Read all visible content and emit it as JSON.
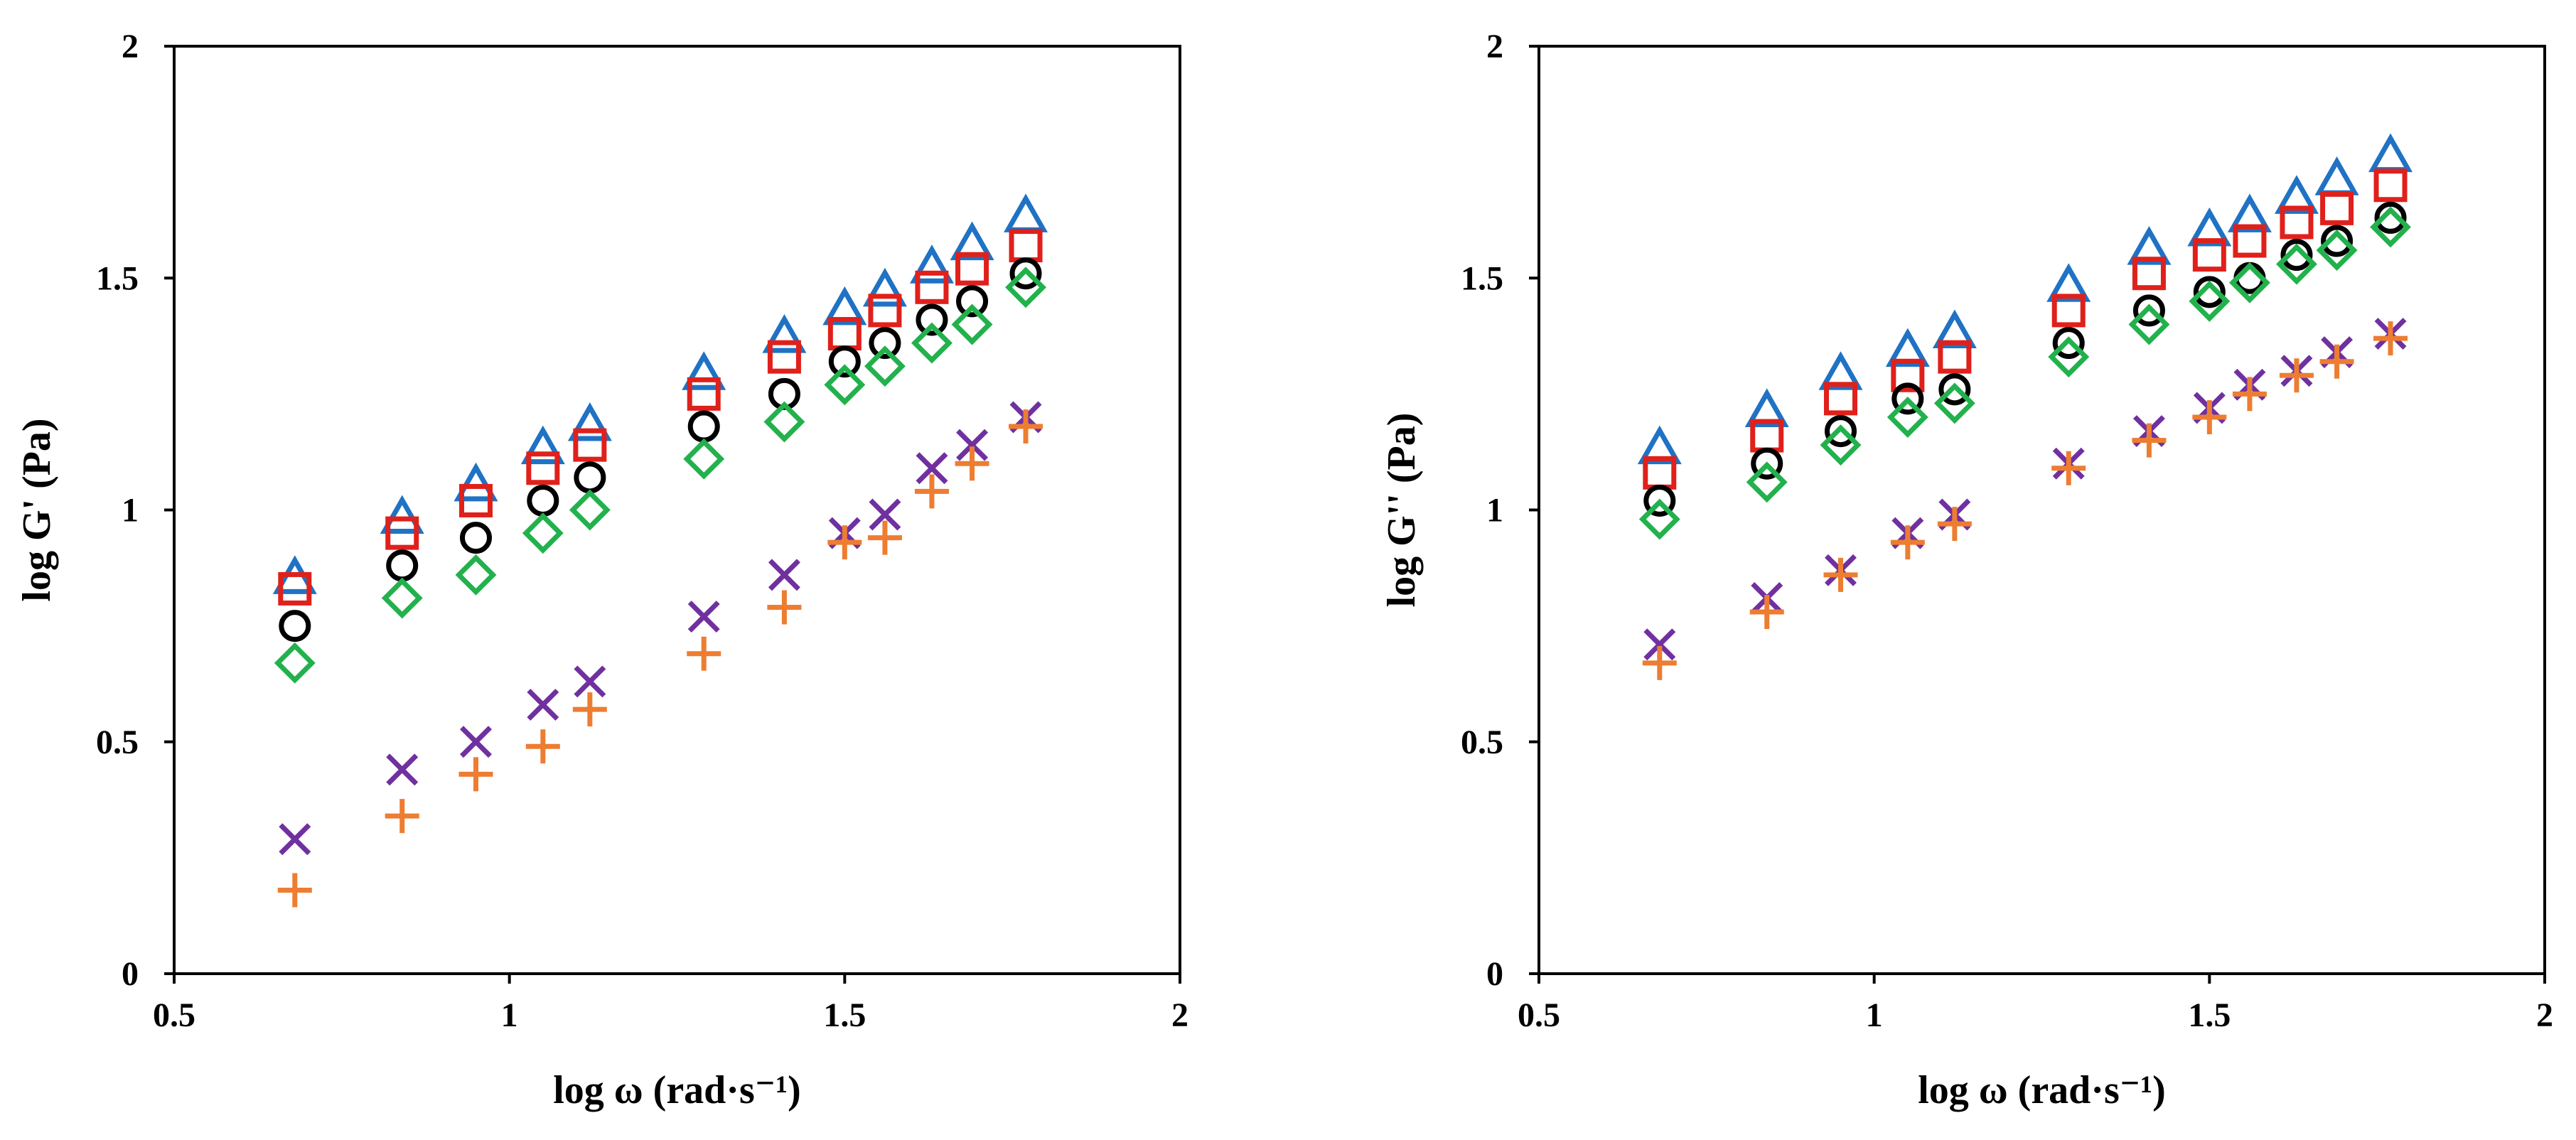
{
  "chart_data": [
    {
      "type": "scatter",
      "title": "",
      "xlabel": "log ω (rad·s⁻¹)",
      "ylabel": "log G' (Pa)",
      "xlim": [
        0.5,
        2
      ],
      "ylim": [
        0,
        2
      ],
      "xticks": [
        0.5,
        1,
        1.5,
        2
      ],
      "xtick_labels": [
        "0.5",
        "1",
        "1.5",
        "2"
      ],
      "yticks": [
        0,
        0.5,
        1,
        1.5,
        2
      ],
      "ytick_labels": [
        "0",
        "0.5",
        "1",
        "1.5",
        "2"
      ],
      "grid": false,
      "legend": "none",
      "x": [
        0.68,
        0.84,
        0.95,
        1.05,
        1.12,
        1.29,
        1.41,
        1.5,
        1.56,
        1.63,
        1.69,
        1.77
      ],
      "series": [
        {
          "name": "triangle",
          "marker": "triangle",
          "color": "#1f72c4",
          "values": [
            0.85,
            0.98,
            1.05,
            1.13,
            1.18,
            1.29,
            1.37,
            1.43,
            1.47,
            1.52,
            1.57,
            1.63
          ]
        },
        {
          "name": "square",
          "marker": "square",
          "color": "#e0201b",
          "values": [
            0.83,
            0.95,
            1.02,
            1.09,
            1.14,
            1.25,
            1.33,
            1.38,
            1.43,
            1.48,
            1.52,
            1.57
          ]
        },
        {
          "name": "circle",
          "marker": "circle",
          "color": "#000000",
          "values": [
            0.75,
            0.88,
            0.94,
            1.02,
            1.07,
            1.18,
            1.25,
            1.32,
            1.36,
            1.41,
            1.45,
            1.51
          ]
        },
        {
          "name": "diamond",
          "marker": "diamond",
          "color": "#22b14c",
          "values": [
            0.67,
            0.81,
            0.86,
            0.95,
            1.0,
            1.11,
            1.19,
            1.27,
            1.31,
            1.36,
            1.4,
            1.48
          ]
        },
        {
          "name": "cross",
          "marker": "x",
          "color": "#7030a0",
          "values": [
            0.29,
            0.44,
            0.5,
            0.58,
            0.63,
            0.77,
            0.86,
            0.95,
            0.99,
            1.09,
            1.14,
            1.2
          ]
        },
        {
          "name": "plus",
          "marker": "plus",
          "color": "#ed7d31",
          "values": [
            0.18,
            0.34,
            0.43,
            0.49,
            0.57,
            0.69,
            0.79,
            0.93,
            0.94,
            1.04,
            1.1,
            1.18
          ]
        }
      ]
    },
    {
      "type": "scatter",
      "title": "",
      "xlabel": "log ω (rad·s⁻¹)",
      "ylabel": "log G'' (Pa)",
      "xlim": [
        0.5,
        2
      ],
      "ylim": [
        0,
        2
      ],
      "xticks": [
        0.5,
        1,
        1.5,
        2
      ],
      "xtick_labels": [
        "0.5",
        "1",
        "1.5",
        "2"
      ],
      "yticks": [
        0,
        0.5,
        1,
        1.5,
        2
      ],
      "ytick_labels": [
        "0",
        "0.5",
        "1",
        "1.5",
        "2"
      ],
      "grid": false,
      "legend": "none",
      "x": [
        0.68,
        0.84,
        0.95,
        1.05,
        1.12,
        1.29,
        1.41,
        1.5,
        1.56,
        1.63,
        1.69,
        1.77
      ],
      "series": [
        {
          "name": "triangle",
          "marker": "triangle",
          "color": "#1f72c4",
          "values": [
            1.13,
            1.21,
            1.29,
            1.34,
            1.38,
            1.48,
            1.56,
            1.6,
            1.63,
            1.67,
            1.71,
            1.76
          ]
        },
        {
          "name": "square",
          "marker": "square",
          "color": "#e0201b",
          "values": [
            1.08,
            1.16,
            1.24,
            1.29,
            1.33,
            1.43,
            1.51,
            1.55,
            1.58,
            1.62,
            1.65,
            1.7
          ]
        },
        {
          "name": "circle",
          "marker": "circle",
          "color": "#000000",
          "values": [
            1.02,
            1.1,
            1.17,
            1.24,
            1.26,
            1.36,
            1.43,
            1.47,
            1.5,
            1.55,
            1.58,
            1.63
          ]
        },
        {
          "name": "diamond",
          "marker": "diamond",
          "color": "#22b14c",
          "values": [
            0.98,
            1.06,
            1.14,
            1.2,
            1.23,
            1.33,
            1.4,
            1.45,
            1.49,
            1.53,
            1.56,
            1.61
          ]
        },
        {
          "name": "cross",
          "marker": "x",
          "color": "#7030a0",
          "values": [
            0.71,
            0.81,
            0.87,
            0.95,
            0.99,
            1.1,
            1.17,
            1.22,
            1.27,
            1.3,
            1.34,
            1.38
          ]
        },
        {
          "name": "plus",
          "marker": "plus",
          "color": "#ed7d31",
          "values": [
            0.67,
            0.78,
            0.86,
            0.93,
            0.97,
            1.09,
            1.15,
            1.2,
            1.25,
            1.29,
            1.32,
            1.37
          ]
        }
      ]
    }
  ]
}
